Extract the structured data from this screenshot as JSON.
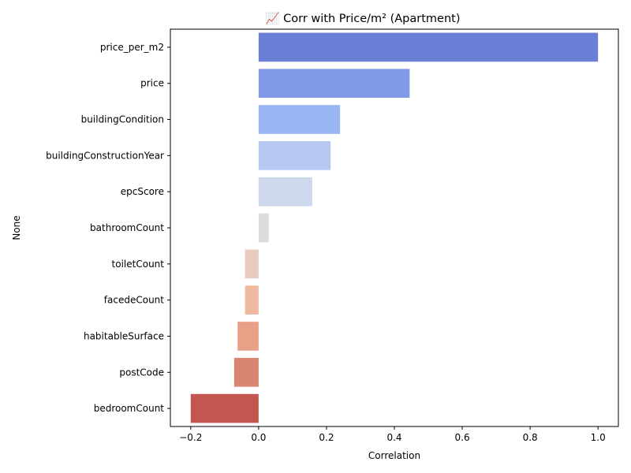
{
  "chart_data": {
    "type": "bar",
    "orientation": "horizontal",
    "title": "📈 Corr with Price/m² (Apartment)",
    "xlabel": "Correlation",
    "ylabel": "None",
    "xlim": [
      -0.26,
      1.06
    ],
    "xticks": [
      -0.2,
      0.0,
      0.2,
      0.4,
      0.6,
      0.8,
      1.0
    ],
    "xtick_labels": [
      "−0.2",
      "0.0",
      "0.2",
      "0.4",
      "0.6",
      "0.8",
      "1.0"
    ],
    "grid": false,
    "categories": [
      "price_per_m2",
      "price",
      "buildingCondition",
      "buildingConstructionYear",
      "epcScore",
      "bathroomCount",
      "toiletCount",
      "facedeCount",
      "habitableSurface",
      "postCode",
      "bedroomCount"
    ],
    "values": [
      1.0,
      0.445,
      0.24,
      0.212,
      0.158,
      0.03,
      -0.04,
      -0.04,
      -0.062,
      -0.072,
      -0.2
    ],
    "colors": [
      "#6a7fd5",
      "#819ae8",
      "#9ab5f3",
      "#b5c8f1",
      "#cdd8ed",
      "#dcdcdc",
      "#eaccbe",
      "#efb8a0",
      "#e8a187",
      "#d88571",
      "#c3574f"
    ]
  }
}
